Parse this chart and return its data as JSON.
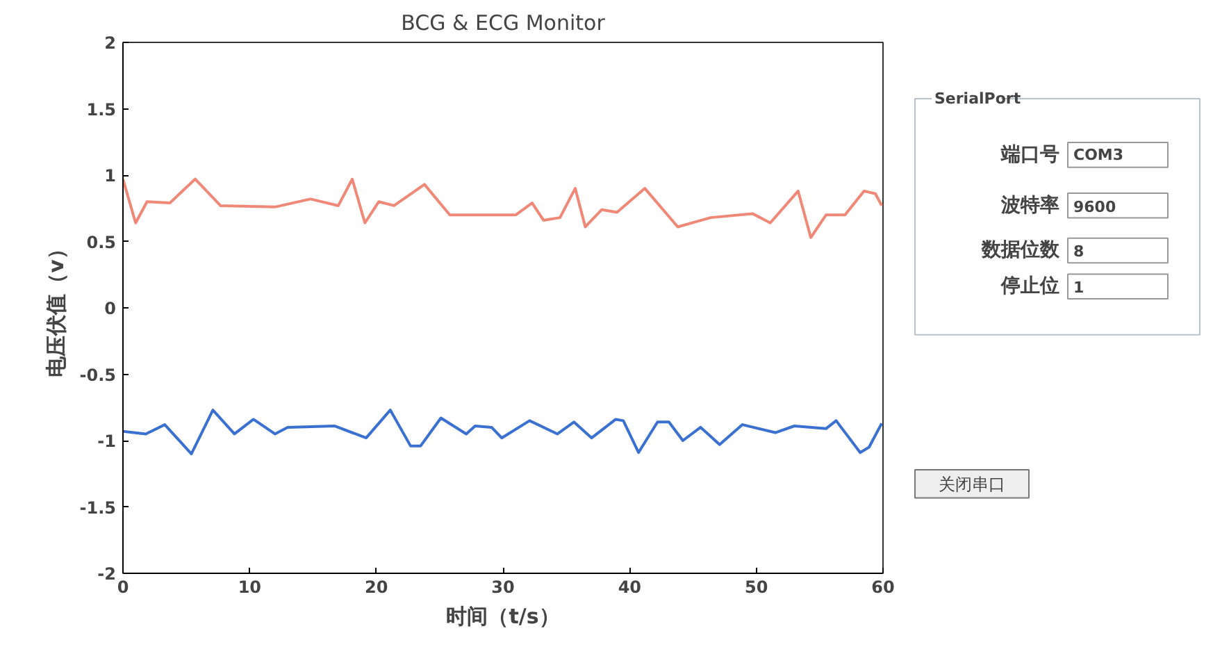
{
  "chart_data": [
    {
      "type": "line",
      "title": "BCG & ECG Monitor",
      "xlabel": "时间（t/s）",
      "ylabel": "电压伏值（v）",
      "xlim": [
        0,
        60
      ],
      "ylim": [
        -2,
        2
      ],
      "xticks": [
        0,
        10,
        20,
        30,
        40,
        50,
        60
      ],
      "yticks": [
        -2,
        -1.5,
        -1,
        -0.5,
        0,
        0.5,
        1,
        1.5,
        2
      ],
      "grid": false,
      "marker": "none",
      "line_style": "solid",
      "series": [
        {
          "color": "#f08878",
          "x": [
            0,
            1,
            1.9,
            3.7,
            5.7,
            7.7,
            12,
            14.8,
            17,
            18.1,
            19.1,
            20.2,
            21.4,
            23.8,
            25.8,
            29.9,
            31,
            32.3,
            33.2,
            34.5,
            35.7,
            36.5,
            37.8,
            39,
            41.2,
            43.8,
            46.4,
            49.7,
            51.1,
            53.3,
            54.3,
            55.5,
            57,
            58.5,
            59.4,
            59.9
          ],
          "values": [
            0.97,
            0.64,
            0.8,
            0.79,
            0.97,
            0.77,
            0.76,
            0.82,
            0.77,
            0.97,
            0.64,
            0.8,
            0.77,
            0.93,
            0.7,
            0.7,
            0.7,
            0.79,
            0.66,
            0.68,
            0.9,
            0.61,
            0.74,
            0.72,
            0.9,
            0.61,
            0.68,
            0.71,
            0.64,
            0.88,
            0.53,
            0.7,
            0.7,
            0.88,
            0.86,
            0.77
          ]
        },
        {
          "color": "#3a70d0",
          "x": [
            0,
            1.8,
            3.3,
            5.4,
            7.1,
            8.8,
            10.3,
            12,
            13,
            16.7,
            19.2,
            21.1,
            22.7,
            23.5,
            25.1,
            27.1,
            27.8,
            29.1,
            29.9,
            32.1,
            34.3,
            35.6,
            37,
            38.9,
            39.5,
            40.7,
            42.2,
            43.1,
            44.2,
            45.6,
            47.1,
            48.9,
            51.5,
            53,
            55.5,
            56.3,
            58.2,
            58.9,
            59.9
          ],
          "values": [
            -0.93,
            -0.95,
            -0.88,
            -1.1,
            -0.77,
            -0.95,
            -0.84,
            -0.95,
            -0.9,
            -0.89,
            -0.98,
            -0.77,
            -1.04,
            -1.04,
            -0.83,
            -0.95,
            -0.89,
            -0.9,
            -0.98,
            -0.85,
            -0.95,
            -0.86,
            -0.98,
            -0.84,
            -0.85,
            -1.09,
            -0.86,
            -0.86,
            -1.0,
            -0.9,
            -1.03,
            -0.88,
            -0.94,
            -0.89,
            -0.91,
            -0.85,
            -1.09,
            -1.05,
            -0.87
          ]
        }
      ]
    },
    {
      "type": "other",
      "title": "SerialPort",
      "annotations": [
        "端口号",
        "COM3",
        "波特率",
        "9600",
        "数据位数",
        "8",
        "停止位",
        "1",
        "关闭串口"
      ]
    }
  ]
}
